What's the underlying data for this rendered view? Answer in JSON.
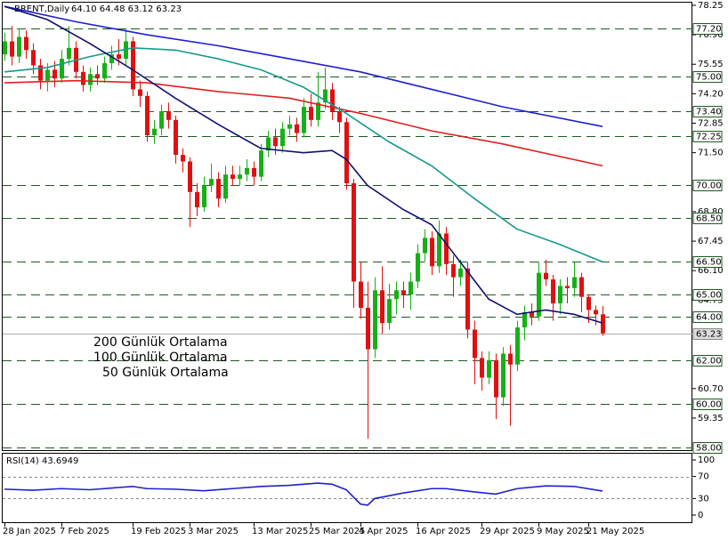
{
  "chart_data": {
    "type": "candlestick",
    "title": "BRENT,Daily",
    "ohlc_label": "64.10 64.48 63.12 63.23",
    "categories": [
      "28 Jan 2025",
      null,
      null,
      null,
      null,
      null,
      null,
      null,
      "7 Feb 2025",
      null,
      null,
      null,
      null,
      null,
      null,
      null,
      null,
      null,
      "19 Feb 2025",
      null,
      null,
      null,
      null,
      null,
      null,
      null,
      "3 Mar 2025",
      null,
      null,
      null,
      null,
      null,
      null,
      null,
      null,
      "13 Mar 2025",
      null,
      null,
      null,
      null,
      null,
      null,
      null,
      "25 Mar 2025",
      null,
      null,
      null,
      null,
      null,
      null,
      "4 Apr 2025",
      null,
      null,
      null,
      null,
      null,
      null,
      null,
      "16 Apr 2025",
      null,
      null,
      null,
      null,
      null,
      null,
      null,
      null,
      "29 Apr 2025",
      null,
      null,
      null,
      null,
      null,
      null,
      null,
      "9 May 2025",
      null,
      null,
      null,
      null,
      null,
      null,
      "21 May 2025",
      null,
      null
    ],
    "open": [
      76.0,
      76.6,
      75.9,
      76.8,
      76.2,
      75.5,
      74.8,
      75.3,
      74.9,
      75.8,
      76.3,
      75.2,
      74.6,
      75.1,
      74.9,
      75.6,
      76.0,
      75.8,
      76.6,
      74.4,
      74.1,
      72.3,
      72.6,
      73.4,
      73.0,
      71.4,
      71.1,
      69.7,
      69.0,
      70.0,
      70.3,
      69.4,
      70.5,
      70.3,
      70.5,
      70.8,
      70.4,
      71.6,
      72.2,
      71.8,
      72.6,
      72.8,
      72.4,
      73.6,
      73.0,
      73.8,
      74.4,
      73.4,
      72.9,
      70.1,
      65.6,
      64.4,
      62.5,
      65.2,
      63.7,
      64.8,
      65.2,
      65.0,
      65.6,
      66.9,
      67.6,
      66.3,
      67.8,
      66.4,
      65.8,
      66.2,
      63.4,
      62.1,
      61.2,
      62.0,
      60.3,
      62.3,
      61.8,
      63.5,
      64.2,
      64.0,
      66.0,
      65.7,
      64.6,
      65.4,
      65.3,
      65.8,
      64.9,
      64.3,
      64.1
    ],
    "high": [
      77.0,
      77.3,
      77.2,
      77.1,
      76.5,
      75.8,
      75.6,
      75.7,
      76.2,
      77.3,
      76.6,
      75.5,
      75.4,
      75.5,
      75.9,
      76.4,
      76.7,
      77.2,
      76.8,
      74.8,
      74.3,
      73.0,
      73.7,
      73.8,
      73.2,
      71.7,
      71.3,
      70.1,
      70.4,
      71.0,
      70.6,
      70.9,
      70.9,
      70.9,
      71.2,
      71.1,
      71.9,
      72.5,
      72.6,
      72.9,
      73.2,
      73.1,
      74.0,
      74.2,
      75.2,
      75.4,
      74.7,
      73.6,
      73.1,
      70.3,
      66.5,
      65.6,
      65.8,
      66.3,
      65.5,
      65.6,
      65.6,
      66.0,
      67.3,
      68.0,
      67.9,
      68.4,
      68.1,
      66.8,
      66.6,
      66.5,
      63.8,
      62.4,
      62.4,
      62.3,
      62.6,
      62.7,
      63.8,
      64.5,
      64.6,
      66.5,
      66.6,
      65.9,
      65.7,
      65.8,
      66.5,
      66.0,
      65.0,
      64.5,
      64.48
    ],
    "low": [
      75.7,
      75.5,
      75.6,
      75.8,
      75.1,
      74.4,
      74.3,
      74.5,
      74.7,
      75.5,
      74.9,
      74.3,
      74.3,
      74.6,
      74.7,
      75.3,
      75.5,
      75.5,
      74.1,
      73.6,
      72.0,
      71.9,
      72.3,
      72.6,
      71.0,
      70.6,
      68.1,
      68.6,
      68.8,
      69.7,
      69.0,
      69.2,
      70.0,
      70.0,
      70.2,
      70.0,
      70.2,
      71.3,
      71.4,
      71.5,
      72.3,
      72.0,
      72.2,
      72.7,
      72.7,
      73.5,
      73.0,
      72.4,
      69.8,
      64.4,
      63.9,
      58.4,
      62.1,
      63.2,
      63.4,
      64.1,
      64.4,
      64.3,
      65.3,
      66.5,
      65.9,
      66.0,
      65.9,
      64.9,
      65.4,
      63.0,
      60.9,
      60.6,
      60.9,
      59.3,
      59.9,
      59.0,
      61.5,
      62.9,
      63.6,
      63.8,
      65.4,
      63.8,
      64.1,
      64.6,
      64.9,
      64.2,
      63.7,
      63.6,
      63.12
    ],
    "close": [
      76.6,
      75.9,
      76.8,
      76.2,
      75.5,
      74.8,
      75.3,
      74.9,
      75.8,
      76.3,
      75.2,
      74.6,
      75.1,
      74.9,
      75.6,
      76.0,
      75.8,
      76.6,
      74.4,
      74.1,
      72.3,
      72.6,
      73.4,
      73.0,
      71.4,
      71.1,
      69.7,
      69.0,
      70.0,
      70.3,
      69.4,
      70.5,
      70.3,
      70.5,
      70.8,
      70.4,
      71.6,
      72.2,
      71.8,
      72.6,
      72.8,
      72.4,
      73.6,
      73.0,
      73.8,
      74.4,
      73.4,
      72.9,
      70.1,
      65.6,
      64.4,
      62.5,
      65.2,
      63.7,
      64.8,
      65.2,
      65.0,
      65.6,
      66.9,
      67.6,
      66.3,
      67.8,
      66.4,
      65.8,
      66.2,
      63.4,
      62.1,
      61.2,
      62.0,
      60.3,
      62.3,
      61.8,
      63.5,
      64.2,
      64.0,
      66.0,
      65.7,
      64.6,
      65.4,
      65.3,
      65.8,
      64.9,
      64.3,
      64.1,
      63.23
    ],
    "up_color": "#16b016",
    "down_color": "#e01010",
    "series": [
      {
        "name": "200 Günlük Ortalama",
        "color": "#1f1fd0",
        "x": [
          0,
          10,
          20,
          30,
          40,
          50,
          60,
          70,
          84
        ],
        "values": [
          78.2,
          77.5,
          76.9,
          76.4,
          75.8,
          75.2,
          74.4,
          73.6,
          72.7
        ]
      },
      {
        "name": "100 Günlük Ortalama",
        "color": "#e02020",
        "x": [
          0,
          10,
          20,
          30,
          40,
          50,
          60,
          70,
          84
        ],
        "values": [
          74.7,
          74.8,
          74.7,
          74.3,
          74.0,
          73.3,
          72.5,
          71.9,
          70.9
        ]
      },
      {
        "name": "50 Günlük Ortalama",
        "color": "#159a8a",
        "x": [
          0,
          6,
          12,
          18,
          24,
          30,
          36,
          42,
          48,
          54,
          60,
          66,
          72,
          78,
          84
        ],
        "values": [
          75.2,
          75.4,
          75.9,
          76.3,
          76.2,
          75.8,
          75.3,
          74.5,
          73.3,
          72.0,
          70.9,
          69.4,
          68.0,
          67.3,
          66.5
        ]
      },
      {
        "color": "#10106e",
        "x": [
          0,
          6,
          12,
          18,
          24,
          30,
          36,
          42,
          46,
          48,
          51,
          56,
          60,
          64,
          68,
          72,
          76,
          80,
          84
        ],
        "values": [
          78.2,
          77.6,
          76.5,
          75.3,
          74.0,
          72.8,
          71.7,
          71.5,
          71.6,
          71.2,
          70.0,
          68.9,
          68.2,
          66.5,
          64.8,
          64.1,
          64.3,
          64.1,
          63.7
        ]
      }
    ],
    "ylim": [
      57.84,
      78.37
    ],
    "yticks": [
      78.25,
      {
        "value": 76.9,
        "label": "76.90"
      },
      75.55,
      {
        "value": 74.2,
        "label": "74.20"
      },
      72.85,
      {
        "value": 71.5,
        "label": "71.50"
      },
      {
        "value": 68.8,
        "label": "68.80"
      },
      67.45,
      {
        "value": 66.1,
        "label": "66.10"
      },
      64.75,
      {
        "value": 60.7,
        "label": "60.70"
      },
      59.35
    ],
    "levels": [
      {
        "value": 77.2,
        "label": "77.20"
      },
      {
        "value": 75,
        "label": "75.00"
      },
      {
        "value": 73.4,
        "label": "73.40"
      },
      {
        "value": 72.25,
        "label": "72.25"
      },
      {
        "value": 70,
        "label": "70.00"
      },
      {
        "value": 68.5,
        "label": "68.50"
      },
      {
        "value": 66.5,
        "label": "66.50"
      },
      {
        "value": 65,
        "label": "65.00"
      },
      {
        "value": 64,
        "label": "64.00"
      },
      {
        "value": 62,
        "label": "62.00"
      },
      {
        "value": 60,
        "label": "60.00"
      },
      {
        "value": 58,
        "label": "58.00"
      }
    ],
    "last_price": 63.23,
    "rsi": {
      "label": "RSI(14) 43.6949",
      "color": "#1f1fd0",
      "x": [
        0,
        4,
        8,
        12,
        16,
        18,
        20,
        24,
        28,
        32,
        36,
        40,
        44,
        46,
        48,
        50,
        51,
        52,
        56,
        60,
        62,
        66,
        69,
        72,
        76,
        80,
        84
      ],
      "values": [
        47,
        45,
        48,
        46,
        50,
        52,
        48,
        47,
        44,
        48,
        52,
        54,
        58,
        56,
        46,
        20,
        18,
        30,
        40,
        48,
        48,
        42,
        38,
        48,
        53,
        52,
        43.69
      ],
      "ylim": [
        -14.5,
        111.3
      ],
      "yticks": [
        100,
        70,
        30,
        0
      ],
      "levels": [
        70,
        30
      ]
    }
  }
}
